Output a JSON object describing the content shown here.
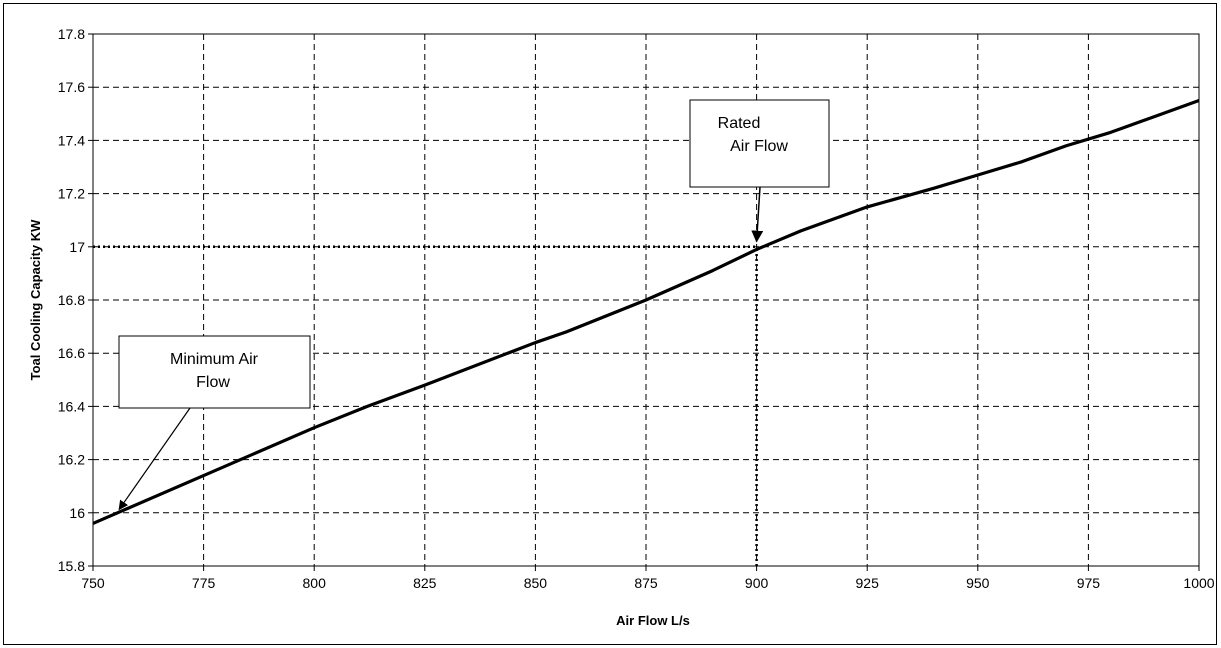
{
  "chart_data": {
    "type": "line",
    "xlabel": "Air Flow L/s",
    "ylabel": "Toal Cooling Capacity KW",
    "xlim": [
      750,
      1000
    ],
    "ylim": [
      15.8,
      17.8
    ],
    "x_ticks": [
      "750",
      "775",
      "800",
      "825",
      "850",
      "875",
      "900",
      "925",
      "950",
      "975",
      "1000"
    ],
    "y_ticks": [
      "15.8",
      "16",
      "16.2",
      "16.4",
      "16.6",
      "16.8",
      "17",
      "17.2",
      "17.4",
      "17.6",
      "17.8"
    ],
    "grid": "dashed",
    "series": [
      {
        "x": [
          750,
          775,
          800,
          812,
          825,
          850,
          857,
          875,
          890,
          900,
          910,
          925,
          940,
          950,
          960,
          970,
          980,
          990,
          1000
        ],
        "y": [
          15.96,
          16.14,
          16.32,
          16.4,
          16.48,
          16.64,
          16.68,
          16.8,
          16.91,
          16.99,
          17.06,
          17.15,
          17.22,
          17.27,
          17.32,
          17.38,
          17.43,
          17.49,
          17.55
        ]
      }
    ],
    "reference_lines": [
      {
        "type": "horizontal",
        "y": 17.0,
        "x_from": 750,
        "x_to": 900,
        "style": "dotted"
      },
      {
        "type": "vertical",
        "x": 900,
        "y_from": 15.8,
        "y_to": 17.0,
        "style": "dotted"
      }
    ],
    "annotations": [
      {
        "lines": [
          "Rated",
          "Air Flow"
        ],
        "points_to": [
          900,
          16.99
        ]
      },
      {
        "lines": [
          "Minimum Air",
          "Flow"
        ],
        "points_to": [
          755,
          15.99
        ]
      }
    ]
  }
}
